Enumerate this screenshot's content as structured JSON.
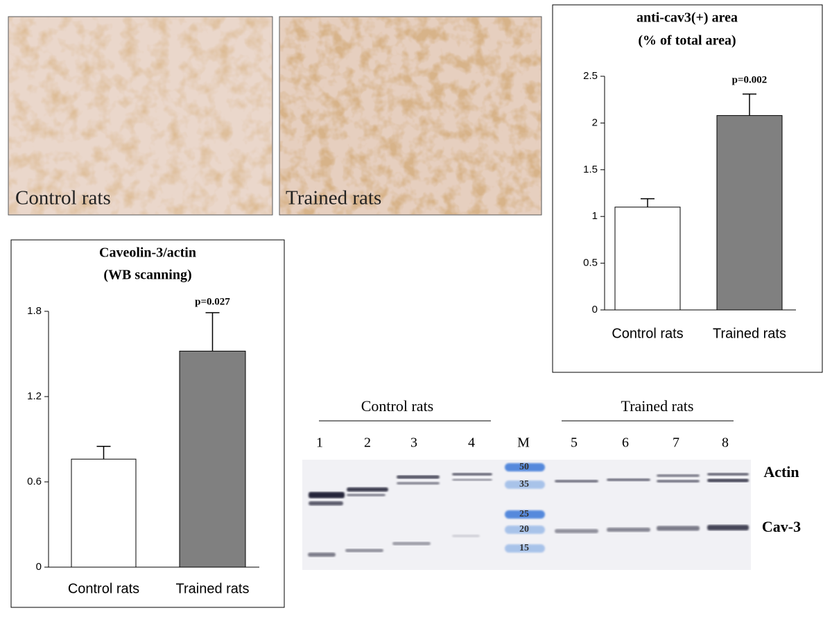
{
  "micrographs": {
    "labels": [
      "Control rats",
      "Trained rats"
    ]
  },
  "chart_data": [
    {
      "type": "bar",
      "title": "anti-cav3(+) area",
      "subtitle": "(% of total area)",
      "categories": [
        "Control rats",
        "Trained rats"
      ],
      "values": [
        1.1,
        2.08
      ],
      "errors": [
        0.09,
        0.23
      ],
      "colors": [
        "#ffffff",
        "#808080"
      ],
      "annotation": "p=0.002",
      "ylim": [
        0,
        2.5
      ],
      "yticks": [
        0,
        0.5,
        1,
        1.5,
        2,
        2.5
      ],
      "grid": false
    },
    {
      "type": "bar",
      "title": "Caveolin-3/actin",
      "subtitle": "(WB scanning)",
      "categories": [
        "Control rats",
        "Trained rats"
      ],
      "values": [
        0.76,
        1.52
      ],
      "errors": [
        0.09,
        0.27
      ],
      "colors": [
        "#ffffff",
        "#808080"
      ],
      "annotation": "p=0.027",
      "ylim": [
        0,
        1.8
      ],
      "yticks": [
        0,
        0.6,
        1.2,
        1.8
      ],
      "grid": false
    }
  ],
  "western_blot": {
    "groups": [
      "Control rats",
      "Trained rats"
    ],
    "lanes": [
      "1",
      "2",
      "3",
      "4",
      "M",
      "5",
      "6",
      "7",
      "8"
    ],
    "markers": [
      "50",
      "35",
      "25",
      "20",
      "15"
    ],
    "bands": [
      "Actin",
      "Cav-3"
    ]
  }
}
